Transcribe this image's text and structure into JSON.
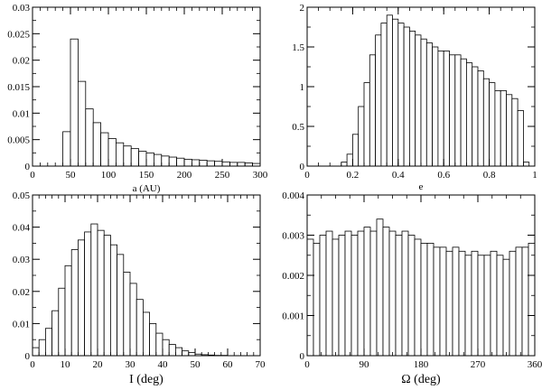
{
  "chart_data": [
    {
      "type": "bar",
      "xlabel": "a (AU)",
      "ylabel": "",
      "xlim": [
        0,
        300
      ],
      "ylim": [
        0,
        0.03
      ],
      "xticks": [
        0,
        50,
        100,
        150,
        200,
        250,
        300
      ],
      "yticks": [
        0,
        0.005,
        0.01,
        0.015,
        0.02,
        0.025,
        0.03
      ],
      "xtick_labels": [
        "0",
        "50",
        "100",
        "150",
        "200",
        "250",
        "300"
      ],
      "ytick_labels": [
        "0",
        "0.005",
        "0.01",
        "0.015",
        "0.02",
        "0.025",
        "0.03"
      ],
      "bin_start": 0,
      "bin_width": 10,
      "values": [
        0,
        0,
        0,
        0,
        0.0065,
        0.024,
        0.016,
        0.0108,
        0.0082,
        0.0063,
        0.0052,
        0.0044,
        0.0038,
        0.0033,
        0.0028,
        0.0025,
        0.0022,
        0.0019,
        0.0017,
        0.0015,
        0.0013,
        0.0012,
        0.0011,
        0.001,
        0.0009,
        0.0008,
        0.0007,
        0.0007,
        0.0006,
        0.0005
      ]
    },
    {
      "type": "bar",
      "xlabel": "e",
      "ylabel": "",
      "xlim": [
        0,
        1
      ],
      "ylim": [
        0,
        2
      ],
      "xticks": [
        0,
        0.2,
        0.4,
        0.6,
        0.8,
        1
      ],
      "yticks": [
        0,
        0.5,
        1,
        1.5,
        2
      ],
      "xtick_labels": [
        "0",
        "0.2",
        "0.4",
        "0.6",
        "0.8",
        "1"
      ],
      "ytick_labels": [
        "0",
        "0.5",
        "1",
        "1.5",
        "2"
      ],
      "bin_start": 0,
      "bin_width": 0.025,
      "values": [
        0,
        0,
        0,
        0,
        0,
        0,
        0.05,
        0.15,
        0.4,
        0.75,
        1.05,
        1.4,
        1.65,
        1.8,
        1.9,
        1.85,
        1.8,
        1.75,
        1.7,
        1.65,
        1.6,
        1.55,
        1.5,
        1.45,
        1.45,
        1.4,
        1.4,
        1.35,
        1.3,
        1.25,
        1.2,
        1.1,
        1.05,
        0.95,
        0.95,
        0.9,
        0.85,
        0.7,
        0.05,
        0
      ]
    },
    {
      "type": "bar",
      "xlabel": "I (deg)",
      "ylabel": "",
      "xlim": [
        0,
        70
      ],
      "ylim": [
        0,
        0.05
      ],
      "xticks": [
        0,
        10,
        20,
        30,
        40,
        50,
        60,
        70
      ],
      "yticks": [
        0,
        0.01,
        0.02,
        0.03,
        0.04,
        0.05
      ],
      "xtick_labels": [
        "0",
        "10",
        "20",
        "30",
        "40",
        "50",
        "60",
        "70"
      ],
      "ytick_labels": [
        "0",
        "0.01",
        "0.02",
        "0.03",
        "0.04",
        "0.05"
      ],
      "bin_start": 0,
      "bin_width": 2,
      "values": [
        0.0025,
        0.005,
        0.0085,
        0.014,
        0.021,
        0.028,
        0.033,
        0.036,
        0.0385,
        0.041,
        0.039,
        0.0375,
        0.0345,
        0.0315,
        0.026,
        0.0225,
        0.0175,
        0.0135,
        0.01,
        0.007,
        0.005,
        0.0035,
        0.0025,
        0.0015,
        0.001,
        0.0005,
        0.0003,
        0.0002,
        0.0001,
        0.0001,
        0,
        0,
        0,
        0,
        0
      ]
    },
    {
      "type": "bar",
      "xlabel": "Ω (deg)",
      "ylabel": "",
      "xlim": [
        0,
        360
      ],
      "ylim": [
        0,
        0.004
      ],
      "xticks": [
        0,
        90,
        180,
        270,
        360
      ],
      "yticks": [
        0,
        0.001,
        0.002,
        0.003,
        0.004
      ],
      "xtick_labels": [
        "0",
        "90",
        "180",
        "270",
        "360"
      ],
      "ytick_labels": [
        "0",
        "0.001",
        "0.002",
        "0.003",
        "0.004"
      ],
      "bin_start": 0,
      "bin_width": 10,
      "values": [
        0.0029,
        0.0028,
        0.003,
        0.0031,
        0.0029,
        0.003,
        0.0031,
        0.003,
        0.0031,
        0.0032,
        0.0031,
        0.0034,
        0.0032,
        0.0031,
        0.003,
        0.0031,
        0.003,
        0.0029,
        0.0028,
        0.0028,
        0.0027,
        0.0027,
        0.0026,
        0.0027,
        0.0026,
        0.0025,
        0.0026,
        0.0025,
        0.0025,
        0.0026,
        0.0025,
        0.0024,
        0.0026,
        0.0027,
        0.0027,
        0.0028
      ]
    }
  ]
}
